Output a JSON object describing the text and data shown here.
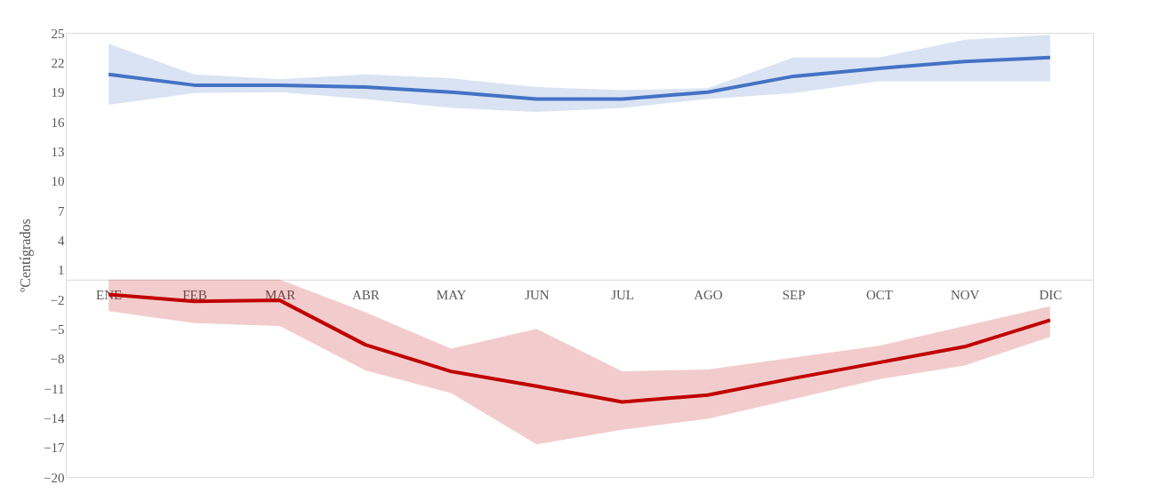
{
  "chart_data": {
    "type": "line",
    "ylabel": "ºCentígrados",
    "categories": [
      "ENE",
      "FEB",
      "MAR",
      "ABR",
      "MAY",
      "JUN",
      "JUL",
      "AGO",
      "SEP",
      "OCT",
      "NOV",
      "DIC"
    ],
    "ylim": [
      -20,
      25
    ],
    "yticks": [
      -20,
      -17,
      -14,
      -11,
      -8,
      -5,
      -2,
      1,
      4,
      7,
      10,
      13,
      16,
      19,
      22,
      25
    ],
    "series": [
      {
        "color": "#4472c4",
        "values": [
          20.8,
          19.7,
          19.7,
          19.5,
          19.0,
          18.3,
          18.3,
          19.0,
          20.6,
          21.4,
          22.1,
          22.5
        ],
        "lower": [
          17.7,
          18.9,
          19.0,
          18.3,
          17.4,
          17.0,
          17.4,
          18.3,
          18.9,
          20.1,
          20.1,
          20.1
        ],
        "upper": [
          23.9,
          20.8,
          20.3,
          20.8,
          20.4,
          19.5,
          19.2,
          19.4,
          22.5,
          22.5,
          24.3,
          24.8
        ]
      },
      {
        "color": "#c00000",
        "values": [
          -1.5,
          -2.2,
          -2.1,
          -6.6,
          -9.3,
          -10.8,
          -12.4,
          -11.7,
          -10.0,
          -8.4,
          -6.8,
          -4.1
        ],
        "lower": [
          -3.2,
          -4.4,
          -4.7,
          -9.2,
          -11.5,
          -16.7,
          -15.2,
          -14.1,
          -12.1,
          -10.1,
          -8.7,
          -5.8
        ],
        "upper": [
          0,
          0,
          0,
          -3.3,
          -7.0,
          -5.0,
          -9.3,
          -9.1,
          -7.9,
          -6.7,
          -4.7,
          -2.7
        ]
      }
    ]
  }
}
